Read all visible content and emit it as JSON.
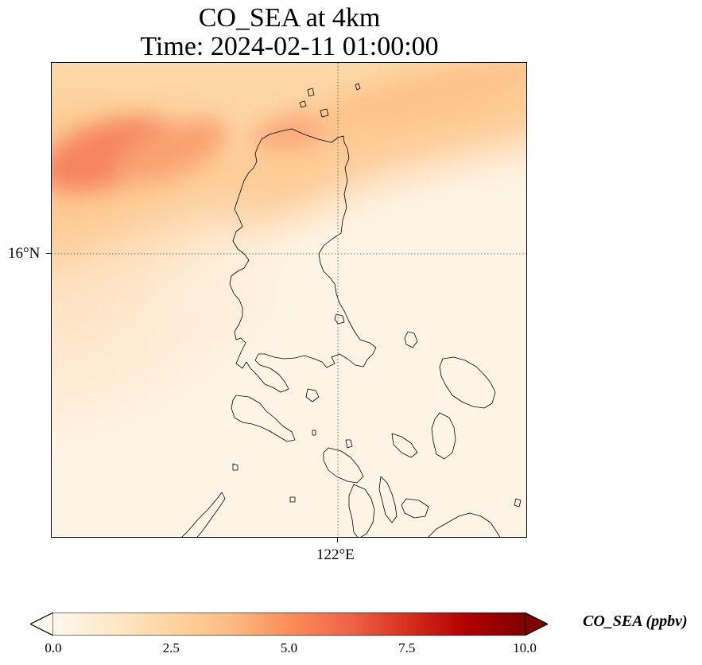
{
  "title": {
    "line1": "CO_SEA at 4km",
    "line2": "Time: 2024-02-11 01:00:00"
  },
  "map": {
    "lat_tick_label": "16°N",
    "lon_tick_label": "122°E",
    "gridline_color": "#555555",
    "coastline_color": "#000000"
  },
  "colorbar": {
    "label": "CO_SEA (ppbv)",
    "min": 0.0,
    "max": 10.0,
    "extend": "both",
    "colormap": "OrRd",
    "colors": [
      "#fff7ec",
      "#fee8c8",
      "#fdd49e",
      "#fdbb84",
      "#fc8d59",
      "#ef6548",
      "#d7301f",
      "#b30000",
      "#7f0000"
    ],
    "tick_labels": [
      "0.0",
      "2.5",
      "5.0",
      "7.5",
      "10.0"
    ]
  }
}
